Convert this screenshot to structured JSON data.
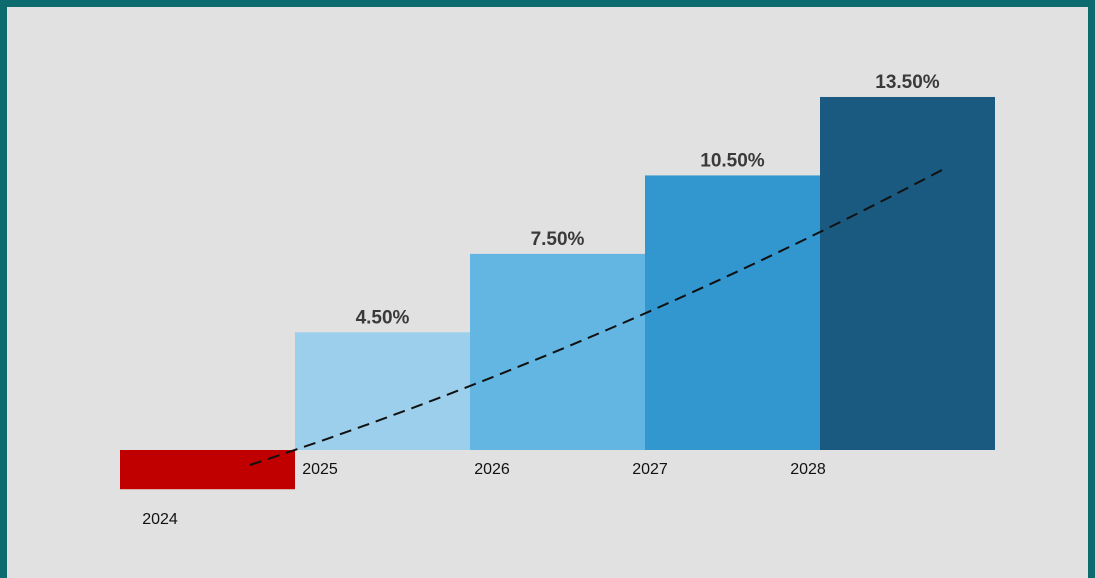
{
  "chart_data": {
    "type": "bar",
    "categories": [
      "2024",
      "2025",
      "2026",
      "2027",
      "2028"
    ],
    "values": [
      -1.5,
      4.5,
      7.5,
      10.5,
      13.5
    ],
    "value_labels": [
      null,
      "4.50%",
      "7.50%",
      "10.50%",
      "13.50%"
    ],
    "colors": [
      "#c00000",
      "#9bcfec",
      "#63b5e2",
      "#3296cf",
      "#1b5a80"
    ]
  }
}
